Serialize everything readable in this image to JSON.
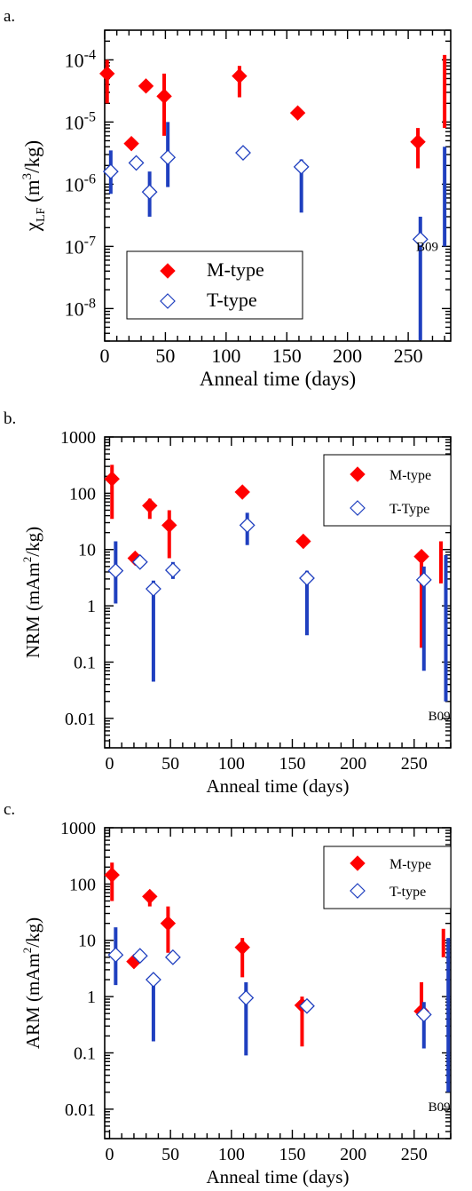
{
  "colors": {
    "m_type": "#ff0000",
    "t_type": "#1f3fbf",
    "axis": "#000000"
  },
  "chart_data": [
    {
      "panel_label": "a.",
      "type": "scatter",
      "log_y": true,
      "xlabel": "Anneal time (days)",
      "ylabel_main": "χ",
      "ylabel_sub": "LF",
      "ylabel_tail": " (m",
      "ylabel_sup": "3",
      "ylabel_end": "/kg)",
      "xlim": [
        0,
        285
      ],
      "ylim": [
        3e-09,
        0.0003
      ],
      "x_ticks": [
        0,
        50,
        100,
        150,
        200,
        250
      ],
      "x_tick_labels": [
        "0",
        "50",
        "100",
        "150",
        "200",
        "250"
      ],
      "y_ticks": [
        1e-08,
        1e-07,
        1e-06,
        1e-05,
        0.0001
      ],
      "y_tick_labels": [
        {
          "base": "10",
          "exp": "-8"
        },
        {
          "base": "10",
          "exp": "-7"
        },
        {
          "base": "10",
          "exp": "-6"
        },
        {
          "base": "10",
          "exp": "-5"
        },
        {
          "base": "10",
          "exp": "-4"
        }
      ],
      "legend": {
        "position": "bottom-left",
        "entries": [
          "M-type",
          "T-type"
        ]
      },
      "annotation": {
        "text": "B09",
        "x": 258,
        "y": 1e-07
      },
      "series": [
        {
          "name": "M-type",
          "marker": "filled-diamond",
          "points": [
            {
              "x": 2,
              "y": 6e-05,
              "lo": 2e-05,
              "hi": 0.0001
            },
            {
              "x": 22,
              "y": 4.5e-06,
              "lo": 3.8e-06,
              "hi": 5.2e-06
            },
            {
              "x": 34,
              "y": 3.8e-05,
              "lo": 3.2e-05,
              "hi": 4.5e-05
            },
            {
              "x": 49,
              "y": 2.6e-05,
              "lo": 6e-06,
              "hi": 6e-05
            },
            {
              "x": 111,
              "y": 5.5e-05,
              "lo": 2.5e-05,
              "hi": 8e-05
            },
            {
              "x": 159,
              "y": 1.4e-05,
              "lo": 1.2e-05,
              "hi": 1.6e-05
            },
            {
              "x": 258,
              "y": 4.8e-06,
              "lo": 1.8e-06,
              "hi": 8e-06
            }
          ],
          "bars": [
            {
              "x": 280,
              "lo": 8e-06,
              "hi": 0.00012
            }
          ]
        },
        {
          "name": "T-type",
          "marker": "open-diamond",
          "points": [
            {
              "x": 5,
              "y": 1.6e-06,
              "lo": 7e-07,
              "hi": 3.5e-06
            },
            {
              "x": 26,
              "y": 2.2e-06,
              "lo": 1.9e-06,
              "hi": 2.5e-06
            },
            {
              "x": 37,
              "y": 7.5e-07,
              "lo": 3e-07,
              "hi": 1.6e-06
            },
            {
              "x": 52,
              "y": 2.7e-06,
              "lo": 9e-07,
              "hi": 1e-05
            },
            {
              "x": 114,
              "y": 3.2e-06,
              "lo": 2.8e-06,
              "hi": 3.6e-06
            },
            {
              "x": 162,
              "y": 1.9e-06,
              "lo": 3.5e-07,
              "hi": 2.5e-06
            },
            {
              "x": 260,
              "y": 1.3e-07,
              "lo": 3e-09,
              "hi": 3e-07
            }
          ],
          "bars": [
            {
              "x": 280,
              "lo": 1e-07,
              "hi": 4e-06
            }
          ]
        }
      ]
    },
    {
      "panel_label": "b.",
      "type": "scatter",
      "log_y": true,
      "xlabel": "Anneal time (days)",
      "ylabel_main": "NRM (mAm",
      "ylabel_sup": "2",
      "ylabel_end": "/kg)",
      "xlim": [
        -4,
        280
      ],
      "ylim": [
        0.003,
        1000
      ],
      "x_ticks": [
        0,
        50,
        100,
        150,
        200,
        250
      ],
      "x_tick_labels": [
        "0",
        "50",
        "100",
        "150",
        "200",
        "250"
      ],
      "y_ticks": [
        0.01,
        0.1,
        1,
        10,
        100,
        1000
      ],
      "y_tick_labels": [
        "0.01",
        "0.1",
        "1",
        "10",
        "100",
        "1000"
      ],
      "legend": {
        "position": "top-right",
        "entries": [
          "M-type",
          "T-Type"
        ]
      },
      "annotation": {
        "text": "B09",
        "x": 263,
        "y": 0.011
      },
      "series": [
        {
          "name": "M-type",
          "marker": "filled-diamond",
          "points": [
            {
              "x": 2,
              "y": 180,
              "lo": 35,
              "hi": 320
            },
            {
              "x": 21,
              "y": 7,
              "lo": 5.8,
              "hi": 8.2
            },
            {
              "x": 33,
              "y": 60,
              "lo": 35,
              "hi": 80
            },
            {
              "x": 49,
              "y": 27,
              "lo": 7,
              "hi": 50
            },
            {
              "x": 109,
              "y": 105,
              "lo": 90,
              "hi": 120
            },
            {
              "x": 159,
              "y": 14,
              "lo": 11,
              "hi": 17
            },
            {
              "x": 256,
              "y": 7.5,
              "lo": 0.18,
              "hi": 9
            }
          ],
          "bars": [
            {
              "x": 272,
              "lo": 2.5,
              "hi": 14
            }
          ]
        },
        {
          "name": "T-Type",
          "marker": "open-diamond",
          "points": [
            {
              "x": 5,
              "y": 4.2,
              "lo": 1.1,
              "hi": 14
            },
            {
              "x": 25,
              "y": 6,
              "lo": 5,
              "hi": 7
            },
            {
              "x": 36,
              "y": 2,
              "lo": 0.045,
              "hi": 2.8
            },
            {
              "x": 52,
              "y": 4.3,
              "lo": 3,
              "hi": 6
            },
            {
              "x": 113,
              "y": 27,
              "lo": 12,
              "hi": 45
            },
            {
              "x": 162,
              "y": 3.1,
              "lo": 0.3,
              "hi": 4.2
            },
            {
              "x": 258,
              "y": 2.9,
              "lo": 0.07,
              "hi": 5
            }
          ],
          "bars": [
            {
              "x": 276,
              "lo": 0.02,
              "hi": 8
            }
          ]
        }
      ]
    },
    {
      "panel_label": "c.",
      "type": "scatter",
      "log_y": true,
      "xlabel": "Anneal time (days)",
      "ylabel_main": "ARM (mAm",
      "ylabel_sup": "2",
      "ylabel_end": "/kg)",
      "xlim": [
        -4,
        280
      ],
      "ylim": [
        0.003,
        1000
      ],
      "x_ticks": [
        0,
        50,
        100,
        150,
        200,
        250
      ],
      "x_tick_labels": [
        "0",
        "50",
        "100",
        "150",
        "200",
        "250"
      ],
      "y_ticks": [
        0.01,
        0.1,
        1,
        10,
        100,
        1000
      ],
      "y_tick_labels": [
        "0.01",
        "0.1",
        "1",
        "10",
        "100",
        "1000"
      ],
      "legend": {
        "position": "top-right",
        "entries": [
          "M-type",
          "T-type"
        ]
      },
      "annotation": {
        "text": "B09",
        "x": 263,
        "y": 0.011
      },
      "series": [
        {
          "name": "M-type",
          "marker": "filled-diamond",
          "points": [
            {
              "x": 2,
              "y": 145,
              "lo": 50,
              "hi": 240
            },
            {
              "x": 20,
              "y": 4.2,
              "lo": 3.6,
              "hi": 4.8
            },
            {
              "x": 33,
              "y": 60,
              "lo": 40,
              "hi": 75
            },
            {
              "x": 48,
              "y": 20,
              "lo": 6,
              "hi": 40
            },
            {
              "x": 109,
              "y": 7.5,
              "lo": 2.2,
              "hi": 11
            },
            {
              "x": 158,
              "y": 0.7,
              "lo": 0.13,
              "hi": 1
            },
            {
              "x": 256,
              "y": 0.55,
              "lo": 0.4,
              "hi": 1.8
            }
          ],
          "bars": [
            {
              "x": 274,
              "lo": 5,
              "hi": 16
            }
          ]
        },
        {
          "name": "T-type",
          "marker": "open-diamond",
          "points": [
            {
              "x": 5,
              "y": 5.5,
              "lo": 1.6,
              "hi": 17
            },
            {
              "x": 25,
              "y": 5.3,
              "lo": 4.6,
              "hi": 6
            },
            {
              "x": 36,
              "y": 2,
              "lo": 0.16,
              "hi": 2.6
            },
            {
              "x": 52,
              "y": 5,
              "lo": 4.2,
              "hi": 5.8
            },
            {
              "x": 112,
              "y": 0.95,
              "lo": 0.09,
              "hi": 1.8
            },
            {
              "x": 162,
              "y": 0.68,
              "lo": 0.58,
              "hi": 0.8
            },
            {
              "x": 258,
              "y": 0.48,
              "lo": 0.12,
              "hi": 0.8
            }
          ],
          "bars": [
            {
              "x": 278,
              "lo": 0.02,
              "hi": 11
            }
          ]
        }
      ]
    }
  ]
}
